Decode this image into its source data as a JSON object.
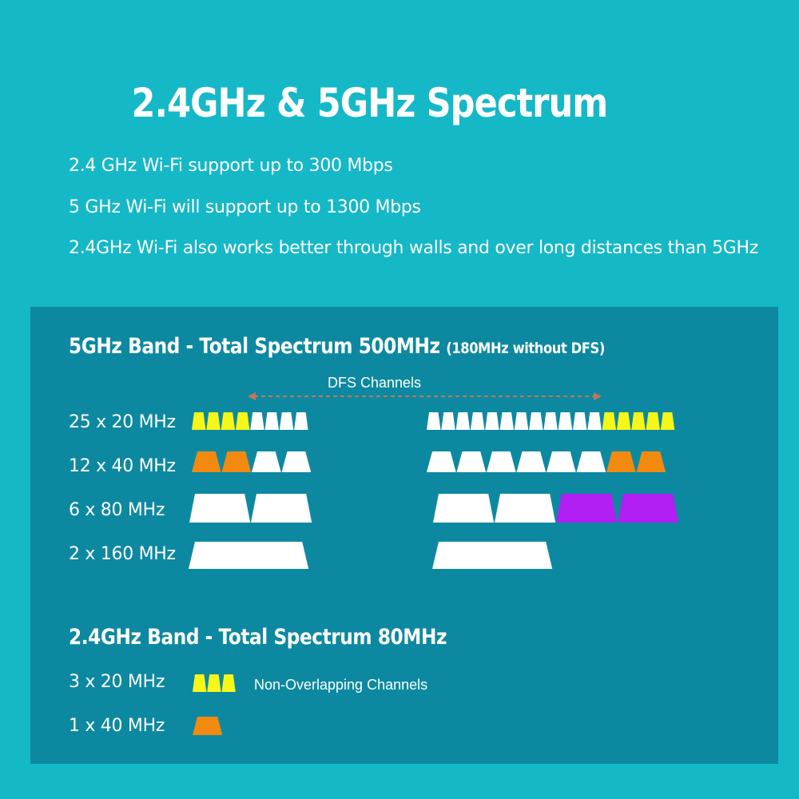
{
  "title": "2.4GHz & 5GHz Spectrum",
  "features": [
    "2.4 GHz Wi-Fi support up to 300 Mbps",
    "5 GHz Wi-Fi will support up to 1300 Mbps",
    "2.4GHz Wi-Fi also works better through walls and over long distances than 5GHz"
  ],
  "band5": {
    "title": "5GHz Band - Total Spectrum 500MHz",
    "note": "(180MHz without DFS)",
    "dfs_label": "DFS Channels",
    "rows": [
      {
        "label": "25 x 20 MHz",
        "groups": [
          [
            "yellow",
            "yellow",
            "yellow",
            "yellow",
            "white",
            "white",
            "white",
            "white"
          ],
          [
            "white",
            "white",
            "white",
            "white",
            "white",
            "white",
            "white",
            "white",
            "white",
            "white",
            "white",
            "white",
            "yellow",
            "yellow",
            "yellow",
            "yellow",
            "yellow"
          ]
        ]
      },
      {
        "label": "12 x 40 MHz",
        "groups": [
          [
            "orange",
            "orange",
            "white",
            "white"
          ],
          [
            "white",
            "white",
            "white",
            "white",
            "white",
            "white",
            "orange",
            "orange"
          ]
        ]
      },
      {
        "label": "6 x 80 MHz",
        "groups": [
          [
            "white",
            "white"
          ],
          [
            "white",
            "white",
            "purple",
            "purple"
          ]
        ]
      },
      {
        "label": "2 x 160 MHz",
        "groups": [
          [
            "white"
          ],
          [
            "white"
          ]
        ]
      }
    ]
  },
  "band24": {
    "title": "2.4GHz Band - Total Spectrum 80MHz",
    "rows": [
      {
        "label": "3 x 20 MHz",
        "groups": [
          [
            "yellow",
            "yellow",
            "yellow"
          ]
        ]
      },
      {
        "label": "1 x 40 MHz",
        "groups": [
          [
            "orange"
          ]
        ]
      }
    ],
    "channel_note": "Non-Overlapping Channels"
  },
  "colors": {
    "background": "#15b8c7",
    "panel": "#0c89a1",
    "white": "#ffffff",
    "yellow": "#f6f619",
    "orange": "#f28a10",
    "purple": "#b21ff2",
    "dfs_arrow": "#c2755a"
  }
}
